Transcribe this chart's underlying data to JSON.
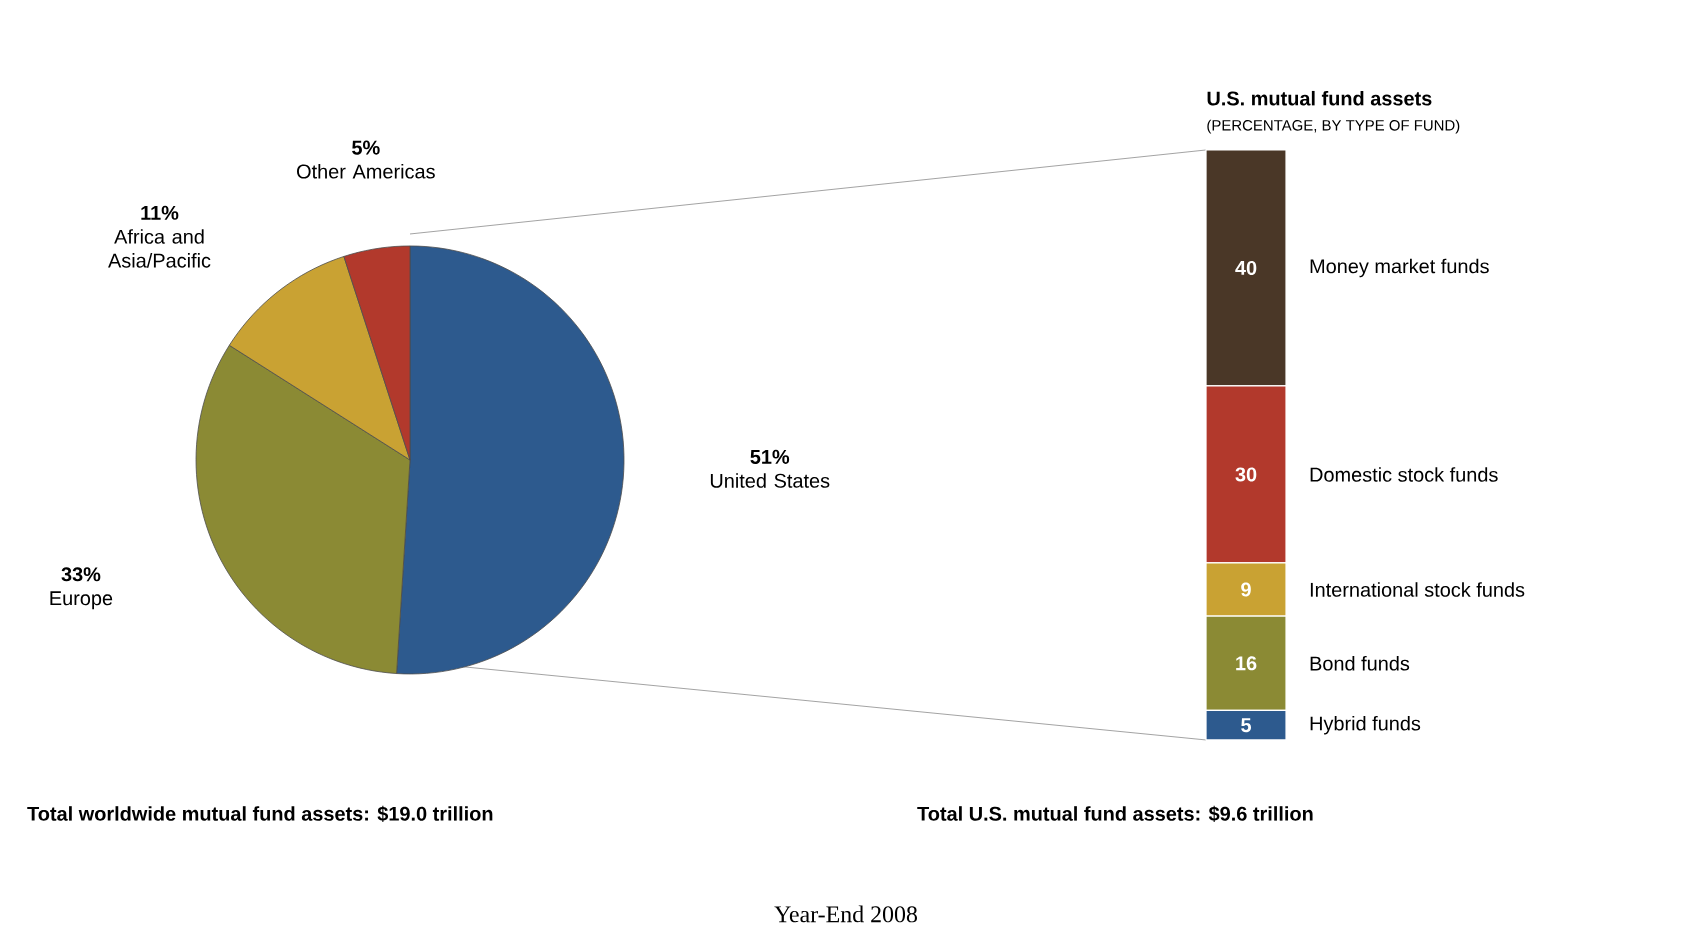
{
  "chart_data": [
    {
      "type": "pie",
      "categories": [
        "United States",
        "Europe",
        "Africa and Asia/Pacific",
        "Other Americas"
      ],
      "values": [
        51,
        33,
        11,
        5
      ],
      "value_labels": [
        "51%",
        "33%",
        "11%",
        "5%"
      ],
      "colors": [
        "#2d5a8e",
        "#8b8a34",
        "#c9a233",
        "#b2392c"
      ],
      "annotations": [
        "**Total worldwide mutual fund assets: $19.0 trillion**",
        "Year-End 2008"
      ]
    },
    {
      "type": "bar",
      "title": "U.S. mutual fund assets",
      "subtitle": "(PERCENTAGE, BY TYPE OF FUND)",
      "categories": [
        null
      ],
      "stacked": true,
      "data_labels": true,
      "series": [
        {
          "name": "Hybrid funds",
          "color": "#2d5a8e",
          "values": [
            5
          ]
        },
        {
          "name": "Bond funds",
          "color": "#8b8a34",
          "values": [
            16
          ]
        },
        {
          "name": "International stock funds",
          "color": "#c9a233",
          "values": [
            9
          ]
        },
        {
          "name": "Domestic stock funds",
          "color": "#b2392c",
          "values": [
            30
          ]
        },
        {
          "name": "Money market funds",
          "color": "#4a3727",
          "values": [
            40
          ]
        }
      ],
      "annotations": [
        "**Total U.S. mutual fund assets: $9.6 trillion**"
      ]
    }
  ]
}
